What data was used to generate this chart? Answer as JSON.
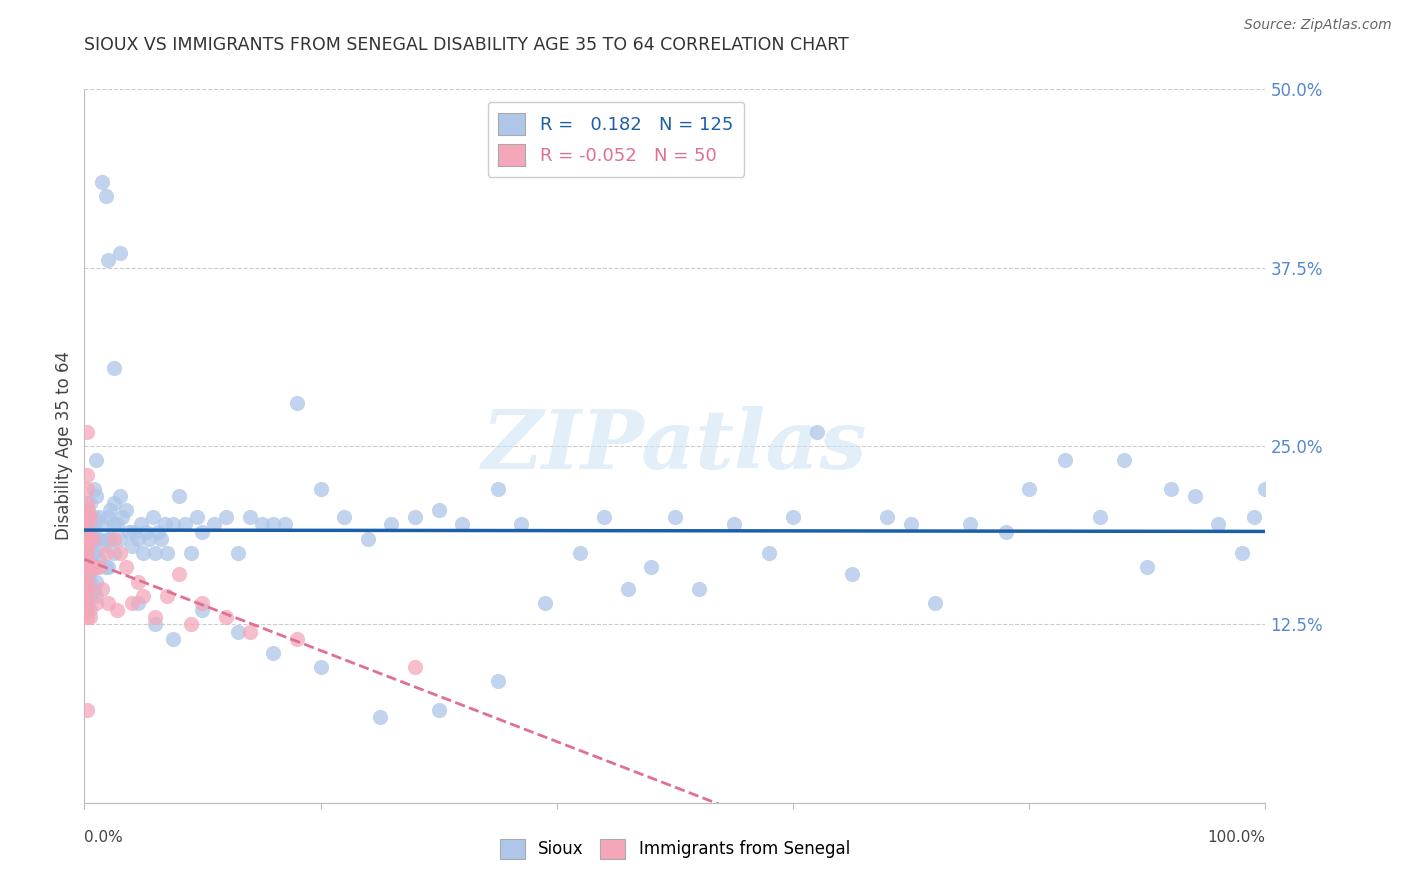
{
  "title": "SIOUX VS IMMIGRANTS FROM SENEGAL DISABILITY AGE 35 TO 64 CORRELATION CHART",
  "source": "Source: ZipAtlas.com",
  "ylabel": "Disability Age 35 to 64",
  "xlim": [
    0.0,
    1.0
  ],
  "ylim": [
    0.0,
    0.5
  ],
  "y_ticks": [
    0.0,
    0.125,
    0.25,
    0.375,
    0.5
  ],
  "y_tick_labels": [
    "",
    "12.5%",
    "25.0%",
    "37.5%",
    "50.0%"
  ],
  "sioux_R": 0.182,
  "sioux_N": 125,
  "senegal_R": -0.052,
  "senegal_N": 50,
  "sioux_color": "#aec6e8",
  "senegal_color": "#f4a7b9",
  "sioux_line_color": "#1a5fa8",
  "senegal_line_color": "#e07090",
  "watermark_color": "#d0e4f4",
  "background_color": "#ffffff",
  "grid_color": "#cccccc",
  "title_color": "#333333",
  "tick_label_color": "#5588cc",
  "sioux_x": [
    0.005,
    0.005,
    0.005,
    0.005,
    0.005,
    0.005,
    0.005,
    0.005,
    0.005,
    0.005,
    0.005,
    0.005,
    0.005,
    0.008,
    0.008,
    0.008,
    0.008,
    0.008,
    0.008,
    0.008,
    0.01,
    0.01,
    0.01,
    0.01,
    0.01,
    0.01,
    0.012,
    0.012,
    0.012,
    0.015,
    0.015,
    0.018,
    0.02,
    0.02,
    0.02,
    0.022,
    0.022,
    0.025,
    0.025,
    0.025,
    0.028,
    0.03,
    0.03,
    0.032,
    0.035,
    0.038,
    0.04,
    0.042,
    0.045,
    0.048,
    0.05,
    0.052,
    0.055,
    0.058,
    0.06,
    0.062,
    0.065,
    0.068,
    0.07,
    0.075,
    0.08,
    0.085,
    0.09,
    0.095,
    0.1,
    0.11,
    0.12,
    0.13,
    0.14,
    0.15,
    0.16,
    0.17,
    0.18,
    0.2,
    0.22,
    0.24,
    0.26,
    0.28,
    0.3,
    0.32,
    0.35,
    0.37,
    0.39,
    0.42,
    0.44,
    0.46,
    0.48,
    0.5,
    0.52,
    0.55,
    0.58,
    0.6,
    0.62,
    0.65,
    0.68,
    0.7,
    0.72,
    0.75,
    0.78,
    0.8,
    0.83,
    0.86,
    0.88,
    0.9,
    0.92,
    0.94,
    0.96,
    0.98,
    0.99,
    1.0,
    0.015,
    0.018,
    0.02,
    0.025,
    0.03,
    0.045,
    0.06,
    0.075,
    0.1,
    0.13,
    0.16,
    0.2,
    0.25,
    0.3,
    0.35
  ],
  "sioux_y": [
    0.195,
    0.185,
    0.175,
    0.165,
    0.155,
    0.145,
    0.135,
    0.19,
    0.18,
    0.2,
    0.21,
    0.17,
    0.16,
    0.22,
    0.2,
    0.185,
    0.175,
    0.165,
    0.15,
    0.195,
    0.24,
    0.215,
    0.185,
    0.165,
    0.155,
    0.145,
    0.2,
    0.185,
    0.17,
    0.195,
    0.18,
    0.165,
    0.2,
    0.185,
    0.165,
    0.205,
    0.185,
    0.195,
    0.21,
    0.175,
    0.195,
    0.215,
    0.185,
    0.2,
    0.205,
    0.19,
    0.18,
    0.19,
    0.185,
    0.195,
    0.175,
    0.19,
    0.185,
    0.2,
    0.175,
    0.19,
    0.185,
    0.195,
    0.175,
    0.195,
    0.215,
    0.195,
    0.175,
    0.2,
    0.19,
    0.195,
    0.2,
    0.175,
    0.2,
    0.195,
    0.195,
    0.195,
    0.28,
    0.22,
    0.2,
    0.185,
    0.195,
    0.2,
    0.205,
    0.195,
    0.22,
    0.195,
    0.14,
    0.175,
    0.2,
    0.15,
    0.165,
    0.2,
    0.15,
    0.195,
    0.175,
    0.2,
    0.26,
    0.16,
    0.2,
    0.195,
    0.14,
    0.195,
    0.19,
    0.22,
    0.24,
    0.2,
    0.24,
    0.165,
    0.22,
    0.215,
    0.195,
    0.175,
    0.2,
    0.22,
    0.435,
    0.425,
    0.38,
    0.305,
    0.385,
    0.14,
    0.125,
    0.115,
    0.135,
    0.12,
    0.105,
    0.095,
    0.06,
    0.065,
    0.085
  ],
  "senegal_x": [
    0.002,
    0.002,
    0.002,
    0.002,
    0.002,
    0.002,
    0.002,
    0.002,
    0.002,
    0.002,
    0.002,
    0.002,
    0.002,
    0.002,
    0.002,
    0.002,
    0.002,
    0.002,
    0.002,
    0.002,
    0.003,
    0.003,
    0.003,
    0.003,
    0.005,
    0.005,
    0.005,
    0.007,
    0.008,
    0.01,
    0.012,
    0.015,
    0.018,
    0.02,
    0.025,
    0.028,
    0.03,
    0.035,
    0.04,
    0.045,
    0.05,
    0.06,
    0.07,
    0.08,
    0.09,
    0.1,
    0.12,
    0.14,
    0.18,
    0.28
  ],
  "senegal_y": [
    0.26,
    0.23,
    0.22,
    0.21,
    0.2,
    0.195,
    0.19,
    0.185,
    0.18,
    0.175,
    0.17,
    0.165,
    0.16,
    0.155,
    0.15,
    0.145,
    0.14,
    0.135,
    0.13,
    0.065,
    0.205,
    0.185,
    0.165,
    0.15,
    0.2,
    0.165,
    0.13,
    0.185,
    0.165,
    0.14,
    0.165,
    0.15,
    0.175,
    0.14,
    0.185,
    0.135,
    0.175,
    0.165,
    0.14,
    0.155,
    0.145,
    0.13,
    0.145,
    0.16,
    0.125,
    0.14,
    0.13,
    0.12,
    0.115,
    0.095
  ]
}
